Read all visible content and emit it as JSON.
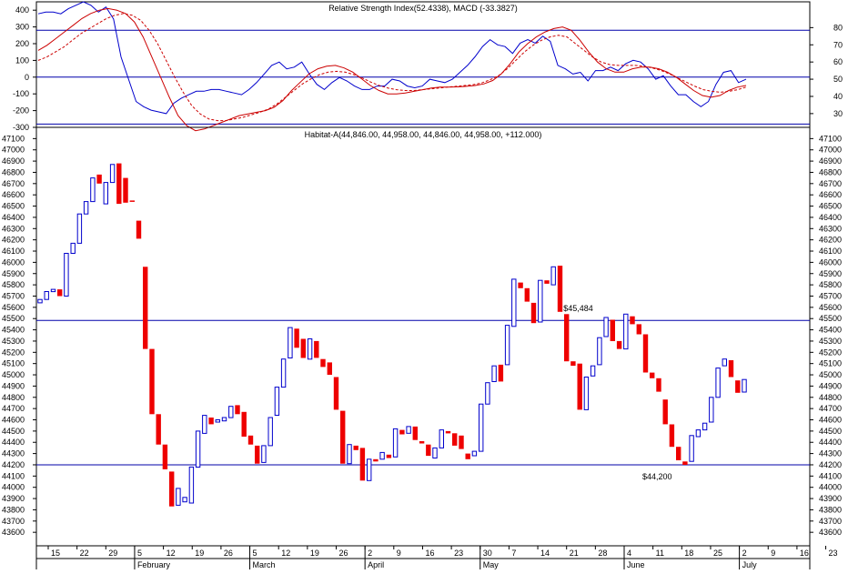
{
  "chart_data": [
    {
      "type": "line",
      "title": "Relative Strength Index(52.4338), MACD (-33.3827)",
      "left_axis": {
        "ticks": [
          400,
          300,
          200,
          100,
          0,
          -100,
          -200,
          -300
        ],
        "tick_labels": [
          "400",
          "300",
          "200",
          "100",
          "0",
          "-100",
          "-200",
          "-300"
        ],
        "range": [
          -300,
          450
        ]
      },
      "right_axis": {
        "ticks": [
          80,
          70,
          60,
          50,
          40,
          30
        ],
        "tick_labels": [
          "80",
          "70",
          "60",
          "50",
          "40",
          "30"
        ],
        "range": [
          22,
          95
        ]
      },
      "reference_lines_left": [
        280,
        0,
        -280
      ],
      "series": [
        {
          "axis": "right",
          "color": "#0000cc",
          "style": "solid",
          "values": [
            88,
            89,
            89,
            88,
            91,
            93,
            95,
            93,
            89,
            92,
            85,
            63,
            50,
            37,
            34,
            32,
            31,
            30,
            36,
            39,
            41,
            43,
            43,
            44,
            44,
            43,
            42,
            41,
            44,
            48,
            53,
            58,
            60,
            56,
            57,
            60,
            53,
            47,
            44,
            48,
            51,
            49,
            46,
            44,
            44,
            46,
            46,
            50,
            49,
            46,
            45,
            46,
            50,
            49,
            48,
            50,
            54,
            58,
            63,
            69,
            73,
            70,
            69,
            65,
            71,
            73,
            71,
            75,
            72,
            58,
            56,
            53,
            54,
            49,
            55,
            55,
            57,
            55,
            59,
            61,
            60,
            56,
            50,
            52,
            46,
            41,
            41,
            37,
            34,
            37,
            47,
            54,
            55,
            48,
            50
          ]
        },
        {
          "axis": "left",
          "color": "#cc0000",
          "style": "solid",
          "values": [
            160,
            190,
            230,
            270,
            310,
            350,
            380,
            400,
            410,
            400,
            380,
            330,
            240,
            120,
            0,
            -120,
            -230,
            -290,
            -320,
            -310,
            -290,
            -270,
            -250,
            -230,
            -220,
            -210,
            -200,
            -180,
            -140,
            -80,
            -30,
            20,
            50,
            65,
            70,
            55,
            30,
            -10,
            -50,
            -80,
            -100,
            -100,
            -95,
            -85,
            -75,
            -65,
            -60,
            -60,
            -58,
            -55,
            -50,
            -40,
            -20,
            20,
            80,
            150,
            200,
            240,
            270,
            290,
            300,
            280,
            220,
            150,
            90,
            50,
            30,
            30,
            50,
            60,
            60,
            50,
            30,
            0,
            -40,
            -80,
            -110,
            -120,
            -110,
            -80,
            -60,
            -50
          ]
        },
        {
          "axis": "left",
          "color": "#cc0000",
          "style": "dashed",
          "values": [
            100,
            120,
            150,
            180,
            220,
            260,
            290,
            320,
            350,
            370,
            380,
            370,
            340,
            280,
            200,
            100,
            0,
            -90,
            -170,
            -220,
            -250,
            -260,
            -260,
            -250,
            -240,
            -225,
            -210,
            -190,
            -160,
            -120,
            -80,
            -40,
            -10,
            15,
            30,
            35,
            30,
            15,
            -5,
            -30,
            -50,
            -65,
            -75,
            -80,
            -80,
            -75,
            -70,
            -65,
            -60,
            -55,
            -50,
            -45,
            -35,
            -15,
            10,
            50,
            100,
            150,
            190,
            220,
            240,
            250,
            240,
            200,
            160,
            120,
            90,
            75,
            70,
            70,
            70,
            65,
            55,
            40,
            20,
            -5,
            -30,
            -55,
            -75,
            -85,
            -90,
            -85,
            -75,
            -60
          ]
        }
      ]
    },
    {
      "type": "candlestick",
      "title": "Habitat-A(44,846.00, 44,958.00, 44,846.00, 44,958.00, +112.000)",
      "y_range": [
        43480,
        47200
      ],
      "y_ticks": [
        47100,
        47000,
        46900,
        46800,
        46700,
        46600,
        46500,
        46400,
        46300,
        46200,
        46100,
        46000,
        45900,
        45800,
        45700,
        45600,
        45500,
        45400,
        45300,
        45200,
        45100,
        45000,
        44900,
        44800,
        44700,
        44600,
        44500,
        44400,
        44300,
        44200,
        44100,
        44000,
        43900,
        43800,
        43700,
        43600
      ],
      "y_tick_labels": [
        "47100",
        "47000",
        "46900",
        "46800",
        "46700",
        "46600",
        "46500",
        "46400",
        "46300",
        "46200",
        "46100",
        "46000",
        "45900",
        "45800",
        "45700",
        "45600",
        "45500",
        "45400",
        "45300",
        "45200",
        "45100",
        "45000",
        "44900",
        "44800",
        "44700",
        "44600",
        "44500",
        "44400",
        "44300",
        "44200",
        "44100",
        "44000",
        "43900",
        "43800",
        "43700",
        "43600"
      ],
      "horizontal_lines": [
        45484,
        44200
      ],
      "annotations": [
        {
          "text": "$45,484",
          "x_index": 82,
          "y": 45484
        },
        {
          "text": "$44,200",
          "x_index": 94,
          "y": 44200
        }
      ],
      "up_color": "#0000cc",
      "down_color": "#ee0000",
      "ohlc_note": "each entry is [open, close]; blue hollow when close > open, red filled when close < open",
      "candles": [
        [
          45640,
          45670
        ],
        [
          45670,
          45740
        ],
        [
          45740,
          45760
        ],
        [
          45760,
          45700
        ],
        [
          45700,
          46080
        ],
        [
          46080,
          46170
        ],
        [
          46170,
          46430
        ],
        [
          46430,
          46540
        ],
        [
          46540,
          46750
        ],
        [
          46780,
          46700
        ],
        [
          46520,
          46710
        ],
        [
          46710,
          46870
        ],
        [
          46880,
          46520
        ],
        [
          46750,
          46530
        ],
        [
          46550,
          46540
        ],
        [
          46370,
          46210
        ],
        [
          45960,
          45230
        ],
        [
          45230,
          44650
        ],
        [
          44650,
          44380
        ],
        [
          44380,
          44160
        ],
        [
          44140,
          43830
        ],
        [
          43840,
          43990
        ],
        [
          43870,
          43910
        ],
        [
          43860,
          44180
        ],
        [
          44180,
          44500
        ],
        [
          44480,
          44640
        ],
        [
          44620,
          44560
        ],
        [
          44580,
          44600
        ],
        [
          44590,
          44620
        ],
        [
          44620,
          44720
        ],
        [
          44730,
          44650
        ],
        [
          44670,
          44450
        ],
        [
          44460,
          44380
        ],
        [
          44370,
          44210
        ],
        [
          44220,
          44370
        ],
        [
          44370,
          44620
        ],
        [
          44640,
          44890
        ],
        [
          44890,
          45140
        ],
        [
          45150,
          45420
        ],
        [
          45410,
          45240
        ],
        [
          45320,
          45150
        ],
        [
          45140,
          45320
        ],
        [
          45300,
          45150
        ],
        [
          45140,
          45070
        ],
        [
          45110,
          45000
        ],
        [
          44980,
          44690
        ],
        [
          44680,
          44210
        ],
        [
          44210,
          44380
        ],
        [
          44370,
          44330
        ],
        [
          44350,
          44060
        ],
        [
          44060,
          44250
        ],
        [
          44250,
          44230
        ],
        [
          44250,
          44310
        ],
        [
          44290,
          44260
        ],
        [
          44270,
          44520
        ],
        [
          44510,
          44470
        ],
        [
          44480,
          44540
        ],
        [
          44540,
          44420
        ],
        [
          44410,
          44390
        ],
        [
          44380,
          44280
        ],
        [
          44260,
          44350
        ],
        [
          44350,
          44510
        ],
        [
          44500,
          44480
        ],
        [
          44480,
          44370
        ],
        [
          44460,
          44340
        ],
        [
          44300,
          44250
        ],
        [
          44280,
          44320
        ],
        [
          44320,
          44740
        ],
        [
          44740,
          44930
        ],
        [
          44940,
          45080
        ],
        [
          45090,
          44940
        ],
        [
          45090,
          45440
        ],
        [
          45430,
          45850
        ],
        [
          45820,
          45770
        ],
        [
          45770,
          45650
        ],
        [
          45640,
          45460
        ],
        [
          45470,
          45840
        ],
        [
          45840,
          45810
        ],
        [
          45800,
          45960
        ],
        [
          45970,
          45560
        ],
        [
          45540,
          45120
        ],
        [
          45120,
          45080
        ],
        [
          45100,
          44690
        ],
        [
          44690,
          44980
        ],
        [
          44990,
          45080
        ],
        [
          45090,
          45330
        ],
        [
          45340,
          45510
        ],
        [
          45490,
          45300
        ],
        [
          45300,
          45230
        ],
        [
          45230,
          45540
        ],
        [
          45520,
          45450
        ],
        [
          45450,
          45360
        ],
        [
          45360,
          45020
        ],
        [
          45020,
          44970
        ],
        [
          44970,
          44850
        ],
        [
          44780,
          44560
        ],
        [
          44560,
          44360
        ],
        [
          44360,
          44240
        ],
        [
          44230,
          44200
        ],
        [
          44230,
          44460
        ],
        [
          44450,
          44510
        ],
        [
          44510,
          44570
        ],
        [
          44580,
          44800
        ],
        [
          44800,
          45060
        ],
        [
          45080,
          45140
        ],
        [
          45130,
          44980
        ],
        [
          44950,
          44840
        ],
        [
          44846,
          44958
        ]
      ],
      "x_day_ticks": [
        "15",
        "22",
        "29",
        "5",
        "12",
        "19",
        "26",
        "5",
        "12",
        "19",
        "26",
        "2",
        "9",
        "16",
        "23",
        "30",
        "7",
        "14",
        "21",
        "28",
        "4",
        "11",
        "18",
        "25",
        "2",
        "9",
        "16",
        "23"
      ],
      "x_month_labels": [
        "February",
        "March",
        "April",
        "May",
        "June",
        "July"
      ]
    }
  ]
}
